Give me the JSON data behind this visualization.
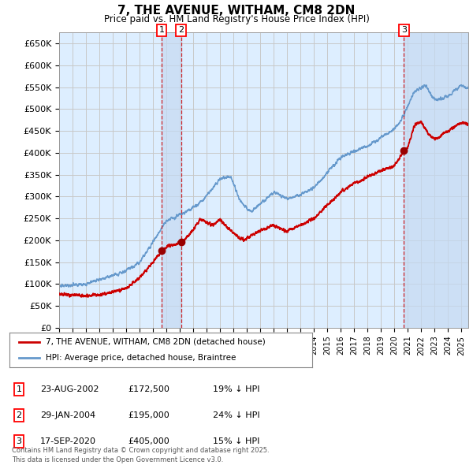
{
  "title": "7, THE AVENUE, WITHAM, CM8 2DN",
  "subtitle": "Price paid vs. HM Land Registry's House Price Index (HPI)",
  "legend_label_red": "7, THE AVENUE, WITHAM, CM8 2DN (detached house)",
  "legend_label_blue": "HPI: Average price, detached house, Braintree",
  "ylabel_ticks": [
    "£0",
    "£50K",
    "£100K",
    "£150K",
    "£200K",
    "£250K",
    "£300K",
    "£350K",
    "£400K",
    "£450K",
    "£500K",
    "£550K",
    "£600K",
    "£650K"
  ],
  "ytick_values": [
    0,
    50000,
    100000,
    150000,
    200000,
    250000,
    300000,
    350000,
    400000,
    450000,
    500000,
    550000,
    600000,
    650000
  ],
  "ylim": [
    0,
    675000
  ],
  "xlim_start": 1995.0,
  "xlim_end": 2025.5,
  "transaction_markers": [
    {
      "label": "1",
      "date_x": 2002.64,
      "price": 172500,
      "hpi_pct": "19% ↓ HPI",
      "date_str": "23-AUG-2002"
    },
    {
      "label": "2",
      "date_x": 2004.08,
      "price": 195000,
      "hpi_pct": "24% ↓ HPI",
      "date_str": "29-JAN-2004"
    },
    {
      "label": "3",
      "date_x": 2020.71,
      "price": 405000,
      "hpi_pct": "15% ↓ HPI",
      "date_str": "17-SEP-2020"
    }
  ],
  "footer_text": "Contains HM Land Registry data © Crown copyright and database right 2025.\nThis data is licensed under the Open Government Licence v3.0.",
  "background_color": "#ffffff",
  "grid_color": "#c8c8c8",
  "plot_bg_color": "#ddeeff",
  "highlight_color": "#c5d9f1",
  "red_color": "#cc0000",
  "blue_color": "#6699cc",
  "marker_dot_color": "#990000"
}
